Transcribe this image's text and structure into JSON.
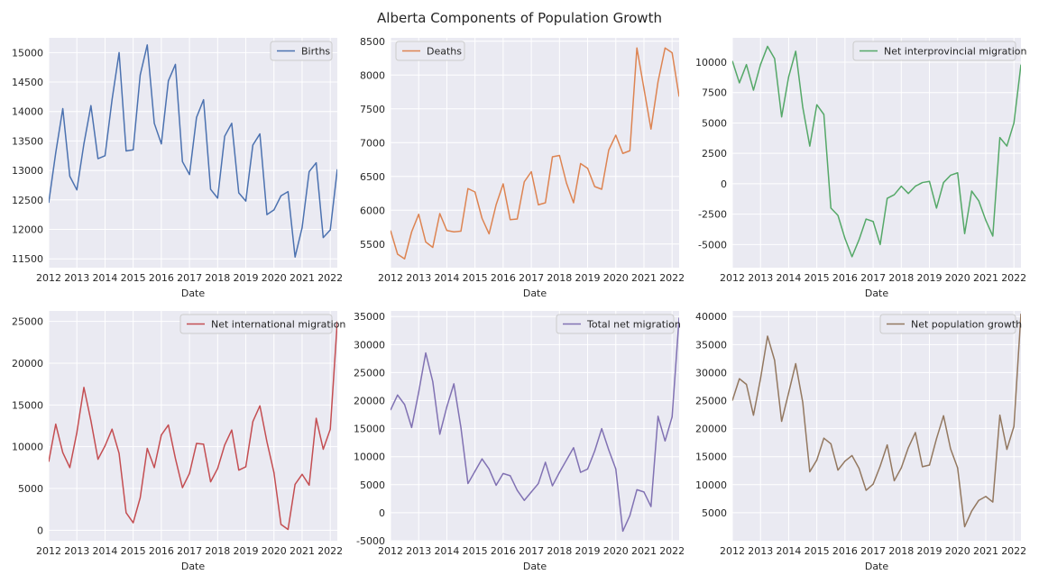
{
  "title": "Alberta Components of Population Growth",
  "colors": {
    "axes_bg": "#eaeaf2",
    "grid": "#ffffff",
    "legend_bg": "#eaeaf2",
    "legend_border": "#cccccc"
  },
  "chart_data": [
    {
      "type": "line",
      "title": "",
      "xlabel": "Date",
      "ylabel": "",
      "legend_position": "top-right",
      "grid": true,
      "xlim": [
        2012.0,
        2022.25
      ],
      "ylim": [
        11350,
        15250
      ],
      "xticks": [
        2012,
        2013,
        2014,
        2015,
        2016,
        2017,
        2018,
        2019,
        2020,
        2021,
        2022
      ],
      "yticks": [
        11500,
        12000,
        12500,
        13000,
        13500,
        14000,
        14500,
        15000
      ],
      "x": [
        2012.0,
        2012.25,
        2012.5,
        2012.75,
        2013.0,
        2013.25,
        2013.5,
        2013.75,
        2014.0,
        2014.25,
        2014.5,
        2014.75,
        2015.0,
        2015.25,
        2015.5,
        2015.75,
        2016.0,
        2016.25,
        2016.5,
        2016.75,
        2017.0,
        2017.25,
        2017.5,
        2017.75,
        2018.0,
        2018.25,
        2018.5,
        2018.75,
        2019.0,
        2019.25,
        2019.5,
        2019.75,
        2020.0,
        2020.25,
        2020.5,
        2020.75,
        2021.0,
        2021.25,
        2021.5,
        2021.75,
        2022.0,
        2022.25
      ],
      "series": [
        {
          "name": "Births",
          "color": "#4c72b0",
          "values": [
            12450,
            13300,
            14050,
            12900,
            12670,
            13450,
            14100,
            13200,
            13250,
            14200,
            15000,
            13330,
            13350,
            14620,
            15130,
            13800,
            13450,
            14520,
            14800,
            13150,
            12930,
            13900,
            14200,
            12680,
            12530,
            13580,
            13800,
            12620,
            12480,
            13430,
            13620,
            12250,
            12330,
            12570,
            12640,
            11530,
            12030,
            12980,
            13130,
            11860,
            11990,
            13020
          ]
        }
      ]
    },
    {
      "type": "line",
      "title": "",
      "xlabel": "Date",
      "ylabel": "",
      "legend_position": "top-left",
      "grid": true,
      "xlim": [
        2012.0,
        2022.25
      ],
      "ylim": [
        5150,
        8550
      ],
      "xticks": [
        2012,
        2013,
        2014,
        2015,
        2016,
        2017,
        2018,
        2019,
        2020,
        2021,
        2022
      ],
      "yticks": [
        5500,
        6000,
        6500,
        7000,
        7500,
        8000,
        8500
      ],
      "x": [
        2012.0,
        2012.25,
        2012.5,
        2012.75,
        2013.0,
        2013.25,
        2013.5,
        2013.75,
        2014.0,
        2014.25,
        2014.5,
        2014.75,
        2015.0,
        2015.25,
        2015.5,
        2015.75,
        2016.0,
        2016.25,
        2016.5,
        2016.75,
        2017.0,
        2017.25,
        2017.5,
        2017.75,
        2018.0,
        2018.25,
        2018.5,
        2018.75,
        2019.0,
        2019.25,
        2019.5,
        2019.75,
        2020.0,
        2020.25,
        2020.5,
        2020.75,
        2021.0,
        2021.25,
        2021.5,
        2021.75,
        2022.0,
        2022.25
      ],
      "series": [
        {
          "name": "Deaths",
          "color": "#dd8452",
          "values": [
            5700,
            5350,
            5280,
            5680,
            5940,
            5530,
            5450,
            5950,
            5700,
            5680,
            5690,
            6320,
            6270,
            5880,
            5650,
            6080,
            6390,
            5860,
            5870,
            6420,
            6570,
            6080,
            6110,
            6790,
            6810,
            6400,
            6110,
            6690,
            6620,
            6350,
            6310,
            6890,
            7110,
            6840,
            6880,
            8400,
            7800,
            7200,
            7900,
            8400,
            8330,
            7680
          ]
        }
      ]
    },
    {
      "type": "line",
      "title": "",
      "xlabel": "Date",
      "ylabel": "",
      "legend_position": "top-right",
      "grid": true,
      "xlim": [
        2012.0,
        2022.25
      ],
      "ylim": [
        -6900,
        12000
      ],
      "xticks": [
        2012,
        2013,
        2014,
        2015,
        2016,
        2017,
        2018,
        2019,
        2020,
        2021,
        2022
      ],
      "yticks": [
        -5000,
        -2500,
        0,
        2500,
        5000,
        7500,
        10000
      ],
      "x": [
        2012.0,
        2012.25,
        2012.5,
        2012.75,
        2013.0,
        2013.25,
        2013.5,
        2013.75,
        2014.0,
        2014.25,
        2014.5,
        2014.75,
        2015.0,
        2015.25,
        2015.5,
        2015.75,
        2016.0,
        2016.25,
        2016.5,
        2016.75,
        2017.0,
        2017.25,
        2017.5,
        2017.75,
        2018.0,
        2018.25,
        2018.5,
        2018.75,
        2019.0,
        2019.25,
        2019.5,
        2019.75,
        2020.0,
        2020.25,
        2020.5,
        2020.75,
        2021.0,
        2021.25,
        2021.5,
        2021.75,
        2022.0,
        2022.25
      ],
      "series": [
        {
          "name": "Net interprovincial migration",
          "color": "#55a868",
          "values": [
            10100,
            8300,
            9800,
            7700,
            9800,
            11300,
            10300,
            5500,
            8800,
            10900,
            6300,
            3100,
            6500,
            5700,
            -2000,
            -2600,
            -4500,
            -6000,
            -4600,
            -2900,
            -3100,
            -5000,
            -1200,
            -900,
            -200,
            -800,
            -200,
            100,
            200,
            -2000,
            100,
            700,
            900,
            -4100,
            -600,
            -1400,
            -3000,
            -4300,
            3800,
            3100,
            5000,
            9800
          ]
        }
      ]
    },
    {
      "type": "line",
      "title": "",
      "xlabel": "Date",
      "ylabel": "",
      "legend_position": "top-right",
      "grid": true,
      "xlim": [
        2012.0,
        2022.25
      ],
      "ylim": [
        -1250,
        26250
      ],
      "xticks": [
        2012,
        2013,
        2014,
        2015,
        2016,
        2017,
        2018,
        2019,
        2020,
        2021,
        2022
      ],
      "yticks": [
        0,
        5000,
        10000,
        15000,
        20000,
        25000
      ],
      "x": [
        2012.0,
        2012.25,
        2012.5,
        2012.75,
        2013.0,
        2013.25,
        2013.5,
        2013.75,
        2014.0,
        2014.25,
        2014.5,
        2014.75,
        2015.0,
        2015.25,
        2015.5,
        2015.75,
        2016.0,
        2016.25,
        2016.5,
        2016.75,
        2017.0,
        2017.25,
        2017.5,
        2017.75,
        2018.0,
        2018.25,
        2018.5,
        2018.75,
        2019.0,
        2019.25,
        2019.5,
        2019.75,
        2020.0,
        2020.25,
        2020.5,
        2020.75,
        2021.0,
        2021.25,
        2021.5,
        2021.75,
        2022.0,
        2022.25
      ],
      "series": [
        {
          "name": "Net international migration",
          "color": "#c44e52",
          "values": [
            8200,
            12700,
            9300,
            7500,
            11700,
            17100,
            13100,
            8500,
            10100,
            12100,
            9200,
            2100,
            900,
            3900,
            9800,
            7500,
            11400,
            12600,
            8600,
            5100,
            6800,
            10400,
            10300,
            5800,
            7400,
            10200,
            12000,
            7200,
            7600,
            13000,
            14900,
            10600,
            6900,
            700,
            100,
            5500,
            6700,
            5400,
            13400,
            9700,
            12100,
            25000
          ]
        }
      ]
    },
    {
      "type": "line",
      "title": "",
      "xlabel": "Date",
      "ylabel": "",
      "legend_position": "top-right",
      "grid": true,
      "xlim": [
        2012.0,
        2022.25
      ],
      "ylim": [
        -5000,
        36000
      ],
      "xticks": [
        2012,
        2013,
        2014,
        2015,
        2016,
        2017,
        2018,
        2019,
        2020,
        2021,
        2022
      ],
      "yticks": [
        -5000,
        0,
        5000,
        10000,
        15000,
        20000,
        25000,
        30000,
        35000
      ],
      "x": [
        2012.0,
        2012.25,
        2012.5,
        2012.75,
        2013.0,
        2013.25,
        2013.5,
        2013.75,
        2014.0,
        2014.25,
        2014.5,
        2014.75,
        2015.0,
        2015.25,
        2015.5,
        2015.75,
        2016.0,
        2016.25,
        2016.5,
        2016.75,
        2017.0,
        2017.25,
        2017.5,
        2017.75,
        2018.0,
        2018.25,
        2018.5,
        2018.75,
        2019.0,
        2019.25,
        2019.5,
        2019.75,
        2020.0,
        2020.25,
        2020.5,
        2020.75,
        2021.0,
        2021.25,
        2021.5,
        2021.75,
        2022.0,
        2022.25
      ],
      "series": [
        {
          "name": "Total net migration",
          "color": "#8172b3",
          "values": [
            18300,
            21000,
            19300,
            15200,
            21500,
            28500,
            23400,
            14000,
            18900,
            23000,
            15200,
            5200,
            7400,
            9600,
            7800,
            4900,
            7000,
            6600,
            4000,
            2200,
            3700,
            5200,
            9000,
            4800,
            7200,
            9400,
            11600,
            7200,
            7800,
            11000,
            15000,
            11200,
            7800,
            -3300,
            -500,
            4100,
            3700,
            1100,
            17200,
            12800,
            17100,
            34800
          ]
        }
      ]
    },
    {
      "type": "line",
      "title": "",
      "xlabel": "Date",
      "ylabel": "",
      "legend_position": "top-right",
      "grid": true,
      "xlim": [
        2012.0,
        2022.25
      ],
      "ylim": [
        0,
        41000
      ],
      "xticks": [
        2012,
        2013,
        2014,
        2015,
        2016,
        2017,
        2018,
        2019,
        2020,
        2021,
        2022
      ],
      "yticks": [
        5000,
        10000,
        15000,
        20000,
        25000,
        30000,
        35000,
        40000
      ],
      "x": [
        2012.0,
        2012.25,
        2012.5,
        2012.75,
        2013.0,
        2013.25,
        2013.5,
        2013.75,
        2014.0,
        2014.25,
        2014.5,
        2014.75,
        2015.0,
        2015.25,
        2015.5,
        2015.75,
        2016.0,
        2016.25,
        2016.5,
        2016.75,
        2017.0,
        2017.25,
        2017.5,
        2017.75,
        2018.0,
        2018.25,
        2018.5,
        2018.75,
        2019.0,
        2019.25,
        2019.5,
        2019.75,
        2020.0,
        2020.25,
        2020.5,
        2020.75,
        2021.0,
        2021.25,
        2021.5,
        2021.75,
        2022.0,
        2022.25
      ],
      "series": [
        {
          "name": "Net population growth",
          "color": "#937860",
          "values": [
            25000,
            28900,
            27900,
            22400,
            28900,
            36500,
            32200,
            21300,
            26400,
            31600,
            24700,
            12300,
            14400,
            18300,
            17300,
            12600,
            14200,
            15200,
            12900,
            9000,
            10100,
            13300,
            17100,
            10700,
            13000,
            16600,
            19300,
            13200,
            13500,
            18200,
            22300,
            16400,
            13000,
            2500,
            5300,
            7200,
            7900,
            6900,
            22400,
            16300,
            20400,
            40500
          ]
        }
      ]
    }
  ]
}
